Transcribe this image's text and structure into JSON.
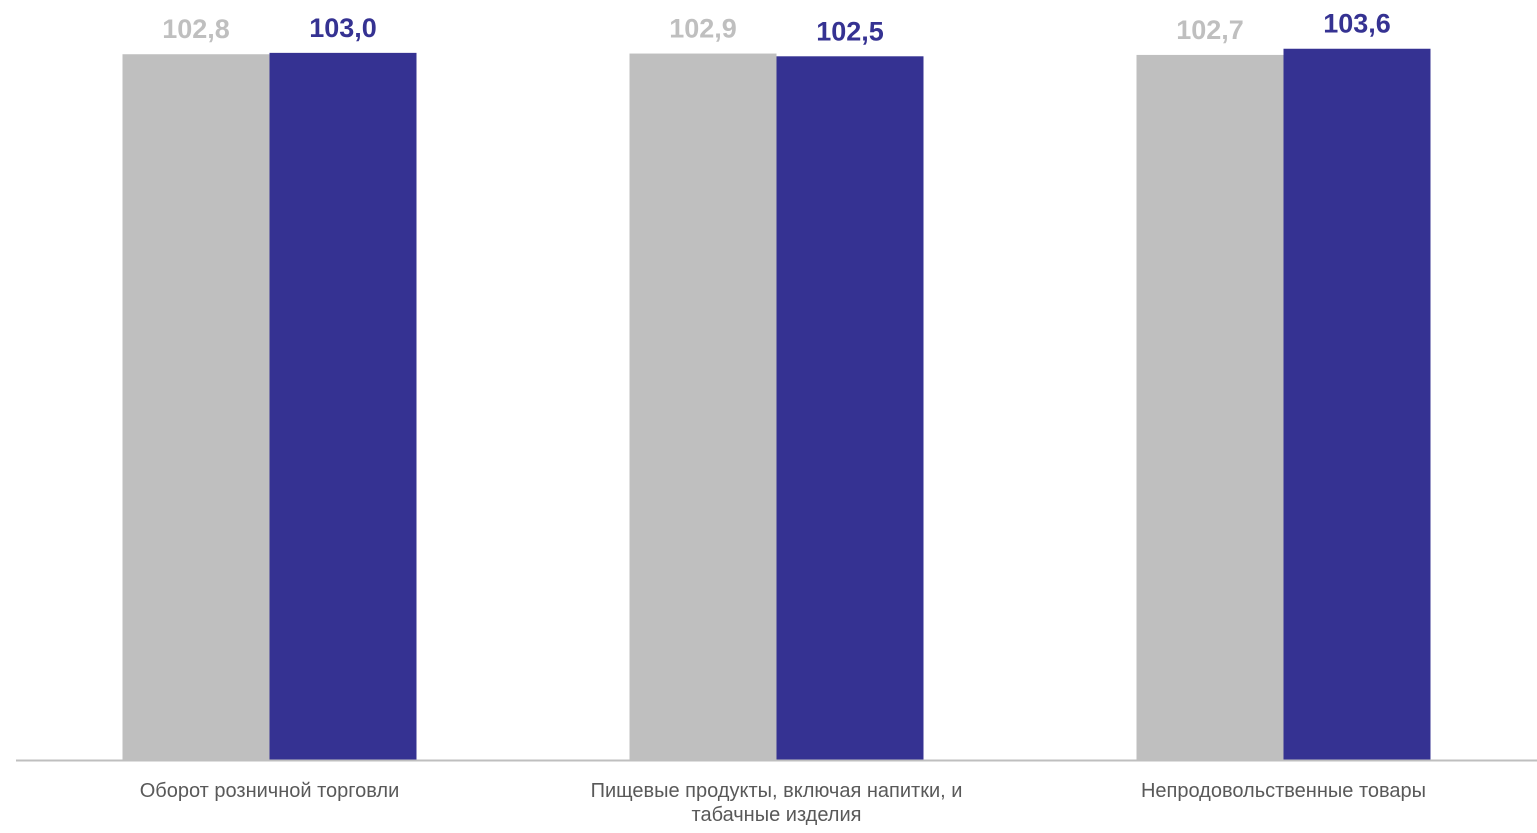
{
  "chart_data": {
    "type": "bar",
    "title": "",
    "xlabel": "",
    "ylabel": "",
    "categories": [
      [
        "Оборот розничной торговли"
      ],
      [
        "Пищевые продукты, включая напитки, и",
        "табачные изделия"
      ],
      [
        "Непродовольственные товары"
      ]
    ],
    "series": [
      {
        "color": "#bfbfbf",
        "values": [
          102.8,
          102.9,
          102.7
        ],
        "labels": [
          "102,8",
          "102,9",
          "102,7"
        ]
      },
      {
        "color": "#353292",
        "values": [
          103.0,
          102.5,
          103.6
        ],
        "labels": [
          "103,0",
          "102,5",
          "103,6"
        ]
      }
    ],
    "ylim": [
      0,
      104
    ],
    "grid": false,
    "legend": "none",
    "axis_color": "#bfbfbf",
    "category_label_color": "#595959"
  }
}
